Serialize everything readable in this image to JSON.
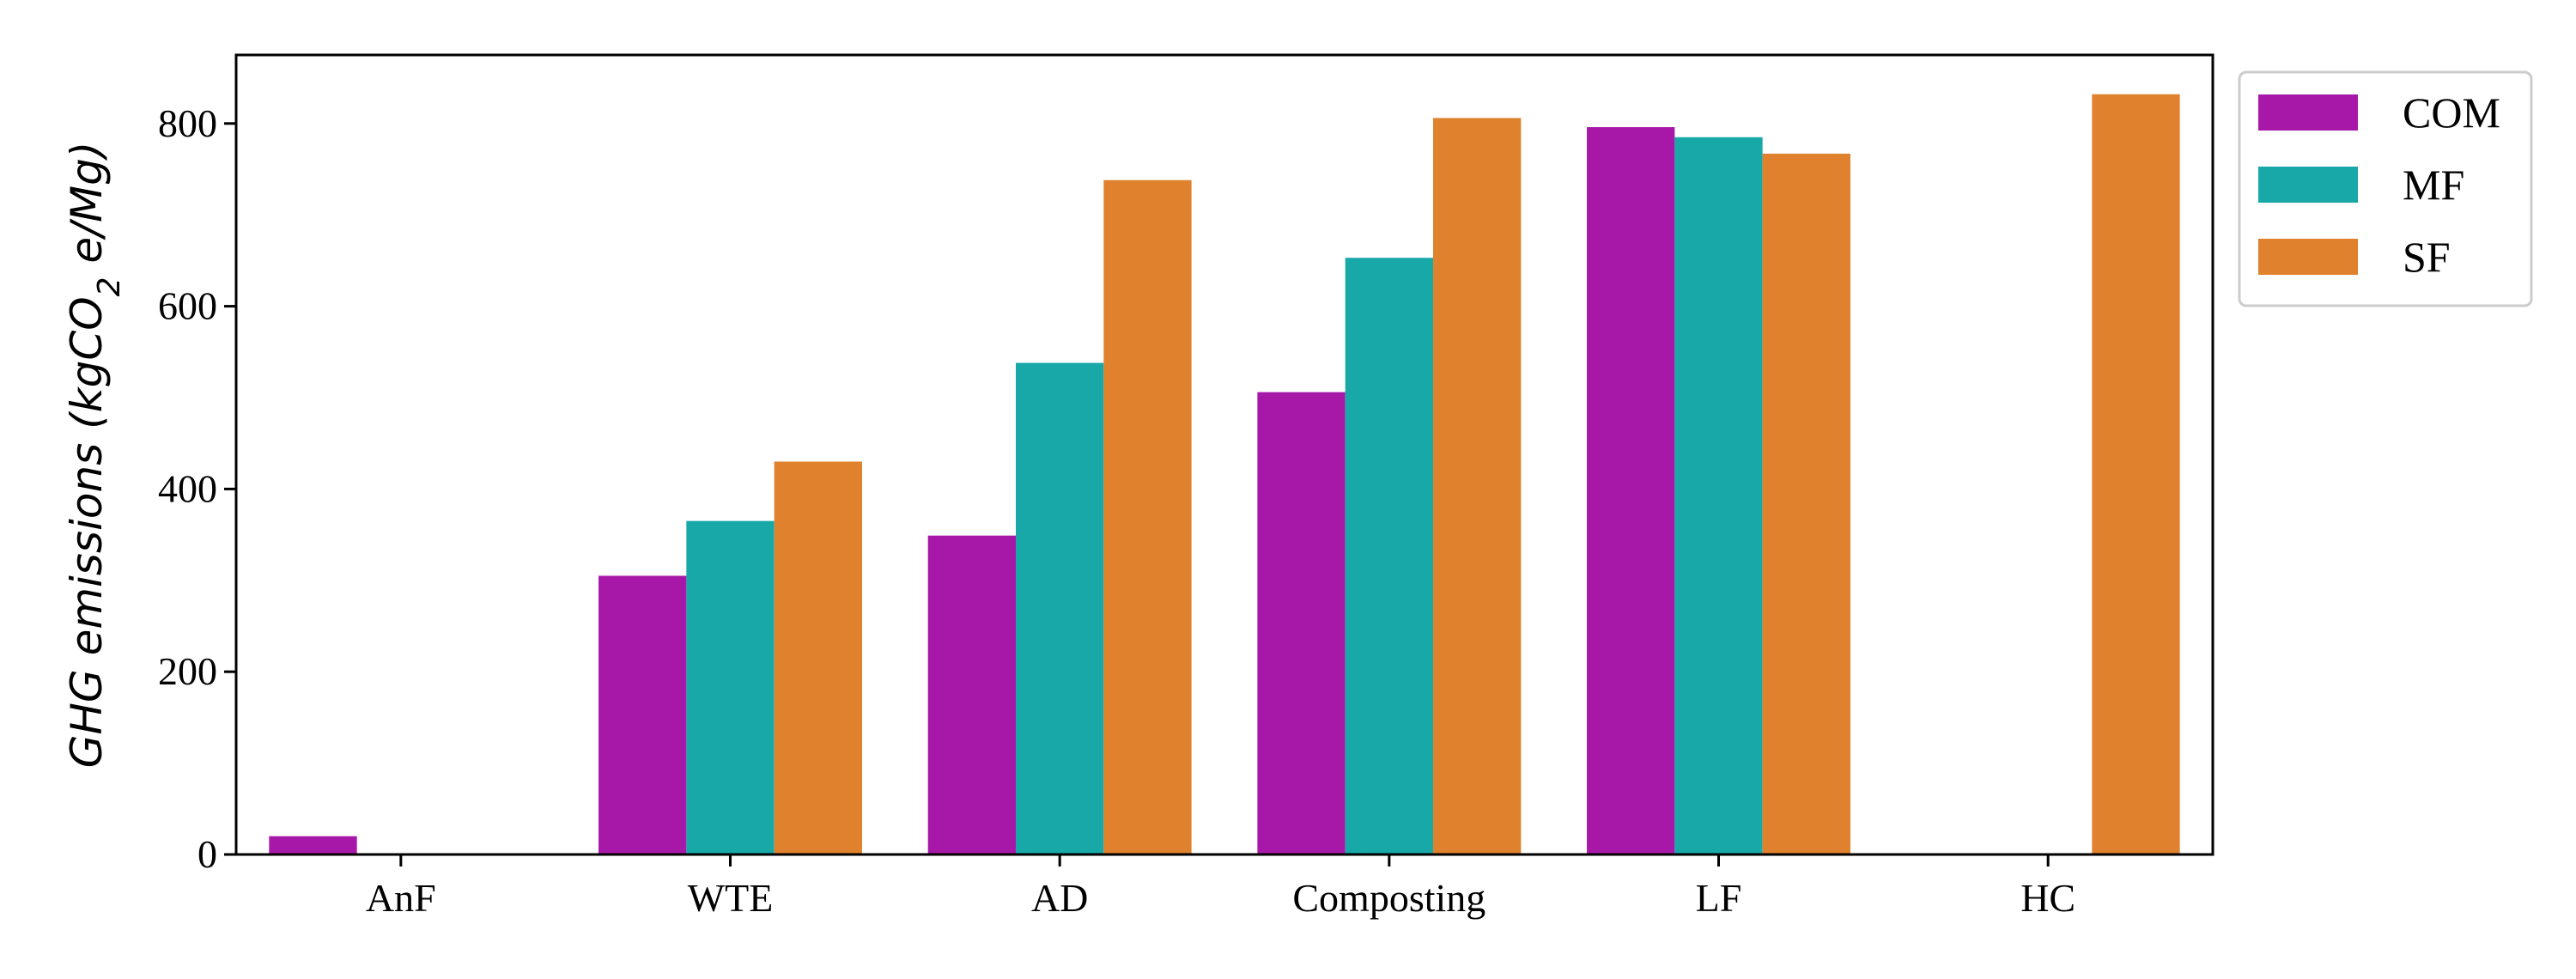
{
  "chart_data": {
    "type": "bar",
    "categories": [
      "AnF",
      "WTE",
      "AD",
      "Composting",
      "LF",
      "HC"
    ],
    "series": [
      {
        "name": "COM",
        "color": "#a818a8",
        "values": [
          20,
          305,
          349,
          506,
          796,
          null
        ]
      },
      {
        "name": "MF",
        "color": "#18a8a8",
        "values": [
          null,
          365,
          538,
          653,
          785,
          null
        ]
      },
      {
        "name": "SF",
        "color": "#e0812e",
        "values": [
          null,
          430,
          738,
          806,
          767,
          832
        ]
      }
    ],
    "ylabel_parts": [
      "GHG emissions (kgCO",
      "2",
      " e/Mg)"
    ],
    "ylim": [
      0,
      875
    ],
    "yticks": [
      0,
      200,
      400,
      600,
      800
    ],
    "grid": false,
    "legend_position": "outside-top-right"
  }
}
